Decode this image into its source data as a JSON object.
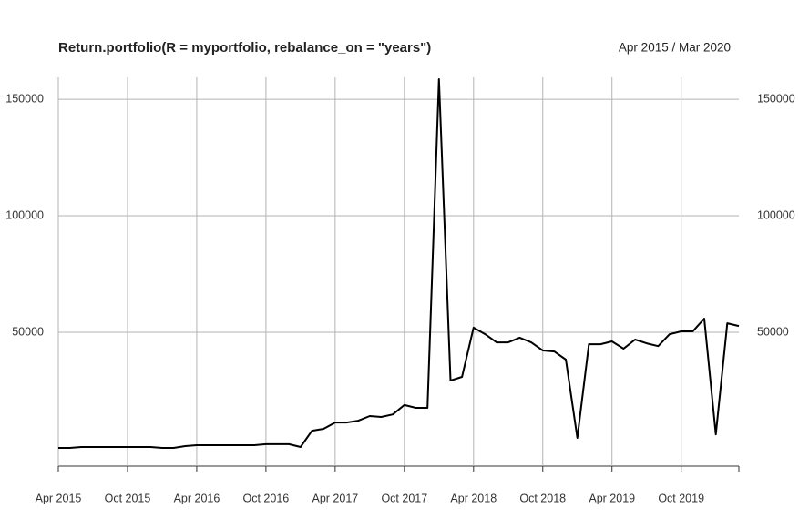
{
  "chart_data": {
    "type": "line",
    "title": "Return.portfolio(R = myportfolio, rebalance_on = \"years\")",
    "subtitle": "Apr 2015 / Mar 2020",
    "categories": [
      "Apr 2015",
      null,
      null,
      null,
      null,
      null,
      "Oct 2015",
      null,
      null,
      null,
      null,
      null,
      "Apr 2016",
      null,
      null,
      null,
      null,
      null,
      "Oct 2016",
      null,
      null,
      null,
      null,
      null,
      "Apr 2017",
      null,
      null,
      null,
      null,
      null,
      "Oct 2017",
      null,
      null,
      null,
      null,
      null,
      "Apr 2018",
      null,
      null,
      null,
      null,
      null,
      "Oct 2018",
      null,
      null,
      null,
      null,
      null,
      "Apr 2019",
      null,
      null,
      null,
      null,
      null,
      "Oct 2019",
      null,
      null,
      null,
      null,
      null
    ],
    "values": [
      400,
      400,
      800,
      800,
      800,
      800,
      800,
      800,
      800,
      400,
      400,
      1200,
      1600,
      1600,
      1600,
      1600,
      1600,
      1600,
      2000,
      2000,
      2000,
      800,
      7800,
      8600,
      11300,
      11300,
      12100,
      14100,
      13700,
      14800,
      18800,
      17600,
      17600,
      158600,
      29300,
      30900,
      52000,
      49200,
      45700,
      45700,
      47700,
      45700,
      42200,
      41800,
      38300,
      4700,
      44900,
      44900,
      46100,
      43000,
      46900,
      45300,
      44100,
      49200,
      50400,
      50400,
      55900,
      6200,
      53900,
      52700
    ],
    "color": "#000000",
    "ylim": [
      -7400,
      159400
    ],
    "yticks": [
      50000,
      100000,
      150000
    ],
    "grid": true
  }
}
